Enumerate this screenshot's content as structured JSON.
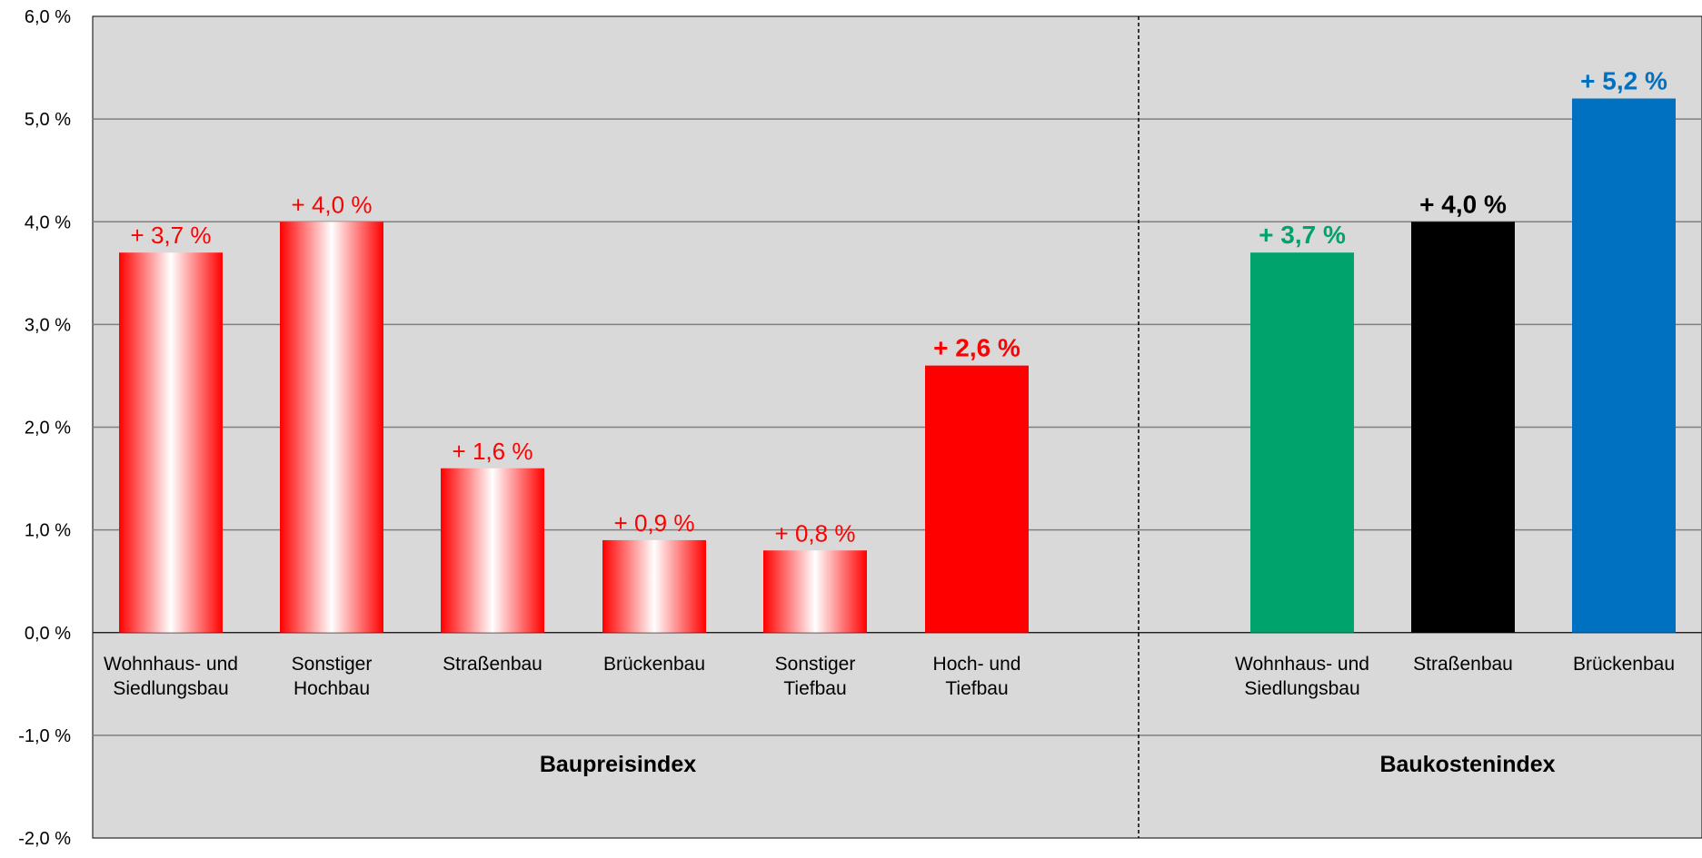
{
  "chart_data": {
    "type": "bar",
    "title": "",
    "xlabel": "",
    "ylabel": "",
    "ylim": [
      -2.0,
      6.0
    ],
    "yticks": [
      -2.0,
      -1.0,
      0.0,
      1.0,
      2.0,
      3.0,
      4.0,
      5.0,
      6.0
    ],
    "ytick_labels": [
      "-2,0 %",
      "-1,0 %",
      "0,0 %",
      "1,0 %",
      "2,0 %",
      "3,0 %",
      "4,0 %",
      "5,0 %",
      "6,0 %"
    ],
    "grid": true,
    "plot_background": "#d9d9d9",
    "groups": [
      {
        "name": "Baupreisindex",
        "bars": [
          {
            "category": [
              "Wohnhaus- und",
              "Siedlungsbau"
            ],
            "value": 3.7,
            "label": "+ 3,7 %",
            "style": "gradient",
            "color": "#ff0000",
            "label_bold": false
          },
          {
            "category": [
              "Sonstiger",
              "Hochbau"
            ],
            "value": 4.0,
            "label": "+ 4,0 %",
            "style": "gradient",
            "color": "#ff0000",
            "label_bold": false
          },
          {
            "category": [
              "Straßenbau"
            ],
            "value": 1.6,
            "label": "+ 1,6 %",
            "style": "gradient",
            "color": "#ff0000",
            "label_bold": false
          },
          {
            "category": [
              "Brückenbau"
            ],
            "value": 0.9,
            "label": "+ 0,9 %",
            "style": "gradient",
            "color": "#ff0000",
            "label_bold": false
          },
          {
            "category": [
              "Sonstiger",
              "Tiefbau"
            ],
            "value": 0.8,
            "label": "+ 0,8 %",
            "style": "gradient",
            "color": "#ff0000",
            "label_bold": false
          },
          {
            "category": [
              "Hoch- und",
              "Tiefbau"
            ],
            "value": 2.6,
            "label": "+ 2,6 %",
            "style": "solid",
            "color": "#ff0000",
            "label_bold": true
          }
        ]
      },
      {
        "name": "Baukostenindex",
        "bars": [
          {
            "category": [
              "Wohnhaus- und",
              "Siedlungsbau"
            ],
            "value": 3.7,
            "label": "+ 3,7 %",
            "style": "solid",
            "color": "#00a36c",
            "label_bold": true
          },
          {
            "category": [
              "Straßenbau"
            ],
            "value": 4.0,
            "label": "+ 4,0 %",
            "style": "solid",
            "color": "#000000",
            "label_bold": true
          },
          {
            "category": [
              "Brückenbau"
            ],
            "value": 5.2,
            "label": "+ 5,2 %",
            "style": "solid",
            "color": "#0070c0",
            "label_bold": true
          }
        ]
      }
    ]
  }
}
